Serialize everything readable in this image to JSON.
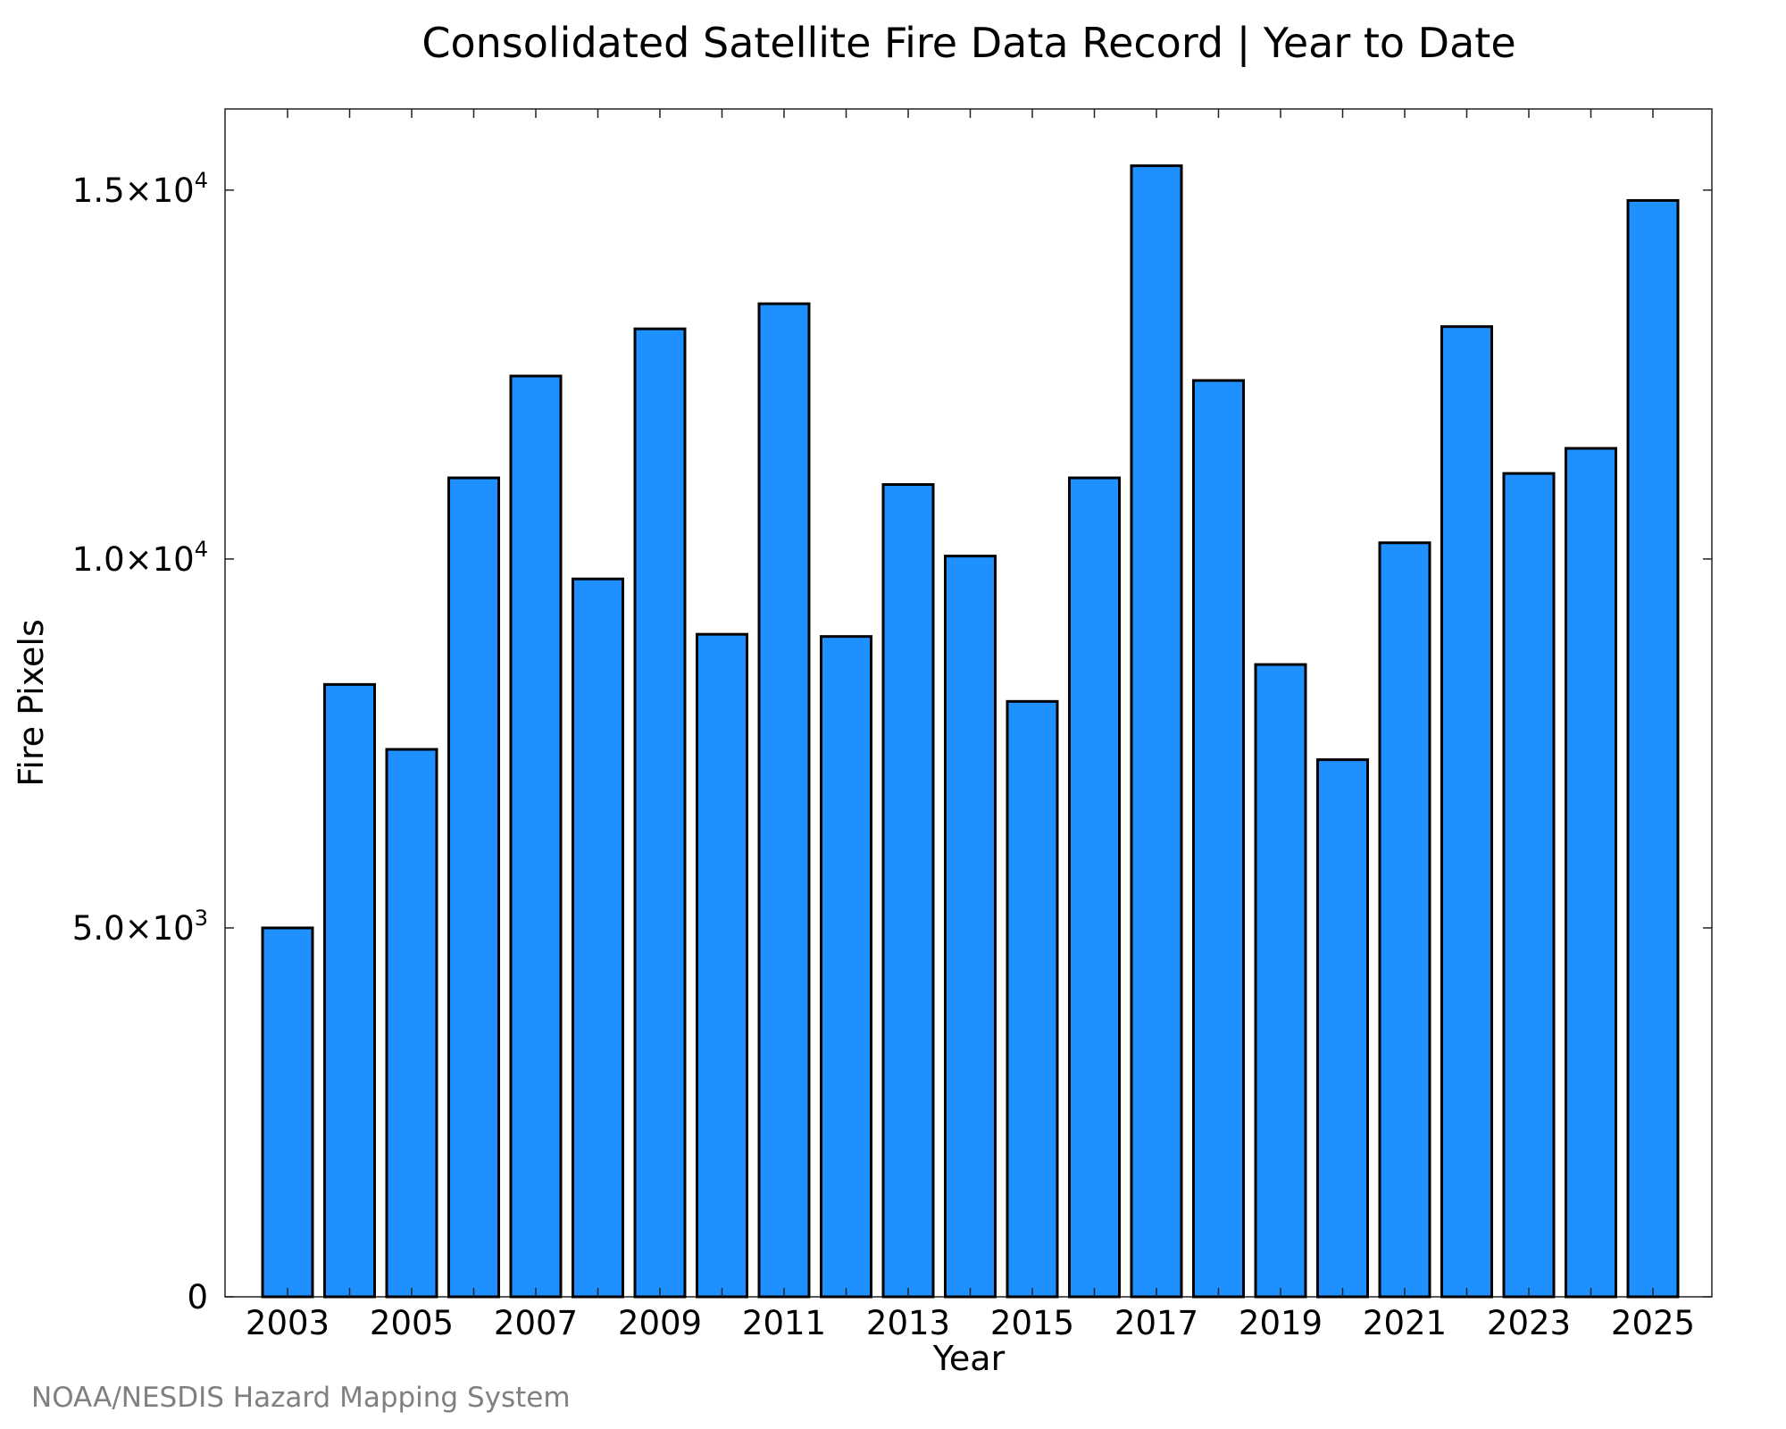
{
  "chart_data": {
    "type": "bar",
    "title": "Consolidated Satellite Fire Data Record | Year to Date",
    "xlabel": "Year",
    "ylabel": "Fire Pixels",
    "categories": [
      "2003",
      "2004",
      "2005",
      "2006",
      "2007",
      "2008",
      "2009",
      "2010",
      "2011",
      "2012",
      "2013",
      "2014",
      "2015",
      "2016",
      "2017",
      "2018",
      "2019",
      "2020",
      "2021",
      "2022",
      "2023",
      "2024",
      "2025"
    ],
    "values": [
      5000,
      8300,
      7420,
      11100,
      12480,
      9730,
      13120,
      8980,
      13460,
      8950,
      11010,
      10040,
      8070,
      11100,
      15330,
      12420,
      8570,
      7280,
      10220,
      13150,
      11160,
      11500,
      14860
    ],
    "ylim": [
      0,
      16100
    ],
    "yticks": [
      {
        "value": 0,
        "label": "0",
        "exp": ""
      },
      {
        "value": 5000,
        "label": "5.0×10",
        "exp": "3"
      },
      {
        "value": 10000,
        "label": "1.0×10",
        "exp": "4"
      },
      {
        "value": 15000,
        "label": "1.5×10",
        "exp": "4"
      }
    ],
    "xtick_labels": [
      "2003",
      "2005",
      "2007",
      "2009",
      "2011",
      "2013",
      "2015",
      "2017",
      "2019",
      "2021",
      "2023",
      "2025"
    ],
    "bar_color": "#1e90ff",
    "bar_edge_color": "#000000",
    "grid": false,
    "legend": "none"
  },
  "credit": "NOAA/NESDIS Hazard Mapping System"
}
